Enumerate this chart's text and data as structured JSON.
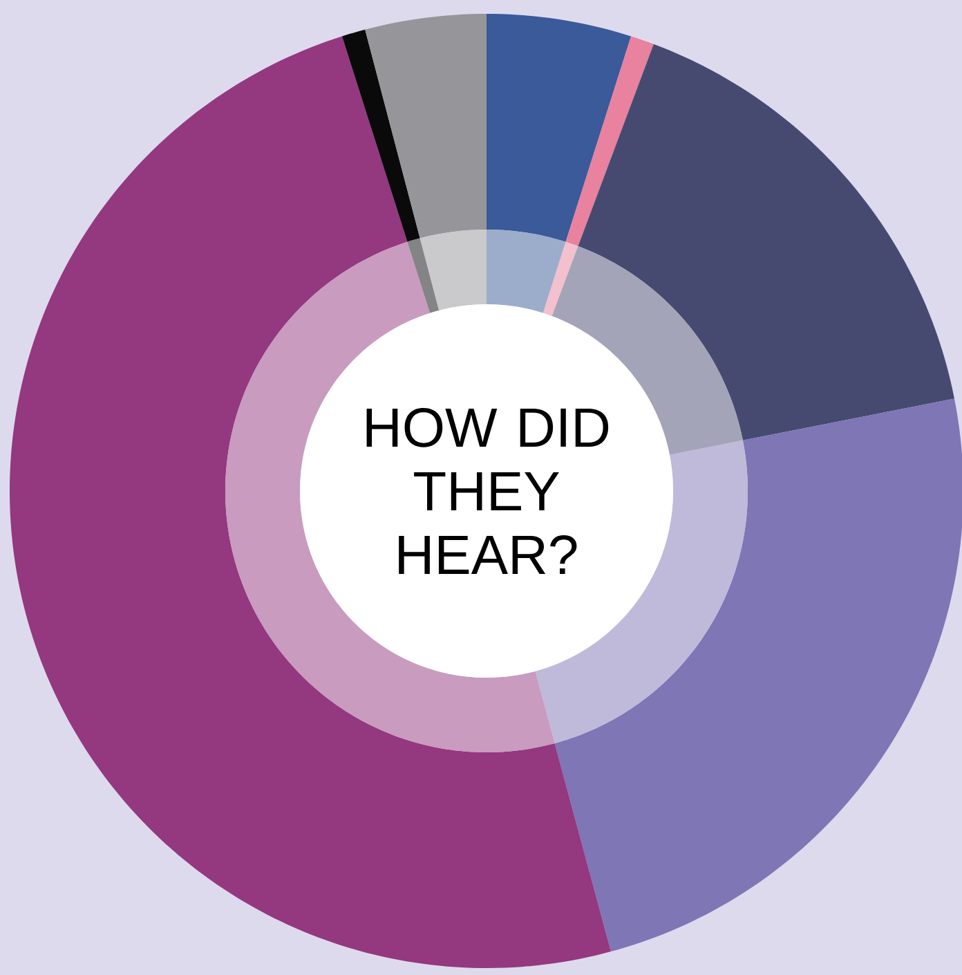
{
  "chart_data": {
    "type": "donut",
    "title": "HOW DID THEY HEAR?",
    "categories": [
      null,
      null,
      null,
      null,
      null,
      null,
      null
    ],
    "series": [
      {
        "values": [
          4.9,
          0.8,
          16.2,
          23.9,
          49.3,
          0.8,
          4.1
        ],
        "colors": [
          "#3a5a9a",
          "#e8829e",
          "#474a70",
          "#7f76b5",
          "#94387f",
          "#0a0a0a",
          "#96969a"
        ]
      },
      {
        "values": [
          4.9,
          0.8,
          16.2,
          23.9,
          49.3,
          0.8,
          4.1
        ],
        "colors": [
          "#9cadcc",
          "#f3c0ce",
          "#a3a4b7",
          "#bfbada",
          "#c99bbf",
          "#848484",
          "#cacacc"
        ]
      }
    ]
  }
}
